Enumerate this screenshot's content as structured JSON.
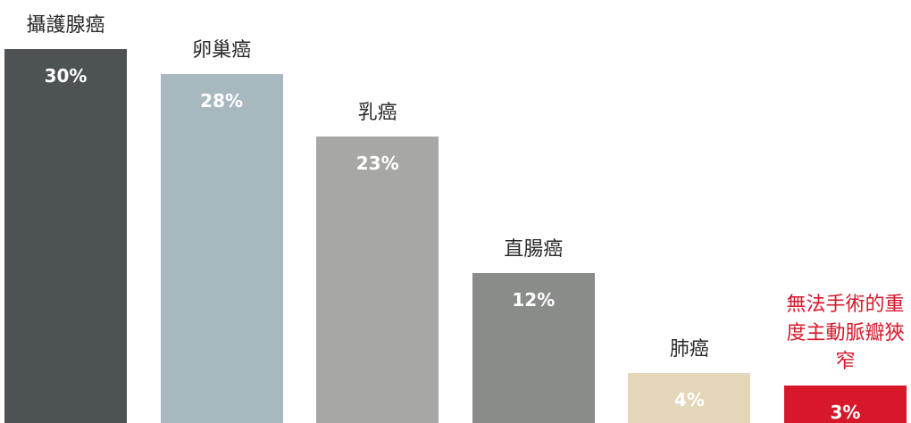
{
  "chart_data": {
    "type": "bar",
    "categories": [
      "攝護腺癌",
      "卵巢癌",
      "乳癌",
      "直腸癌",
      "肺癌",
      "無法手術的重度主動脈瓣狹窄"
    ],
    "values": [
      30,
      28,
      23,
      12,
      4,
      3
    ],
    "value_labels": [
      "30%",
      "28%",
      "23%",
      "12%",
      "4%",
      "3%"
    ],
    "colors": [
      "#4d5254",
      "#a7b9bf",
      "#a7a7a5",
      "#8a8c8a",
      "#e4d6b8",
      "#d7182a"
    ],
    "label_colors": [
      "#2b2b2b",
      "#2b2b2b",
      "#2b2b2b",
      "#2b2b2b",
      "#2b2b2b",
      "#d7182a"
    ]
  }
}
